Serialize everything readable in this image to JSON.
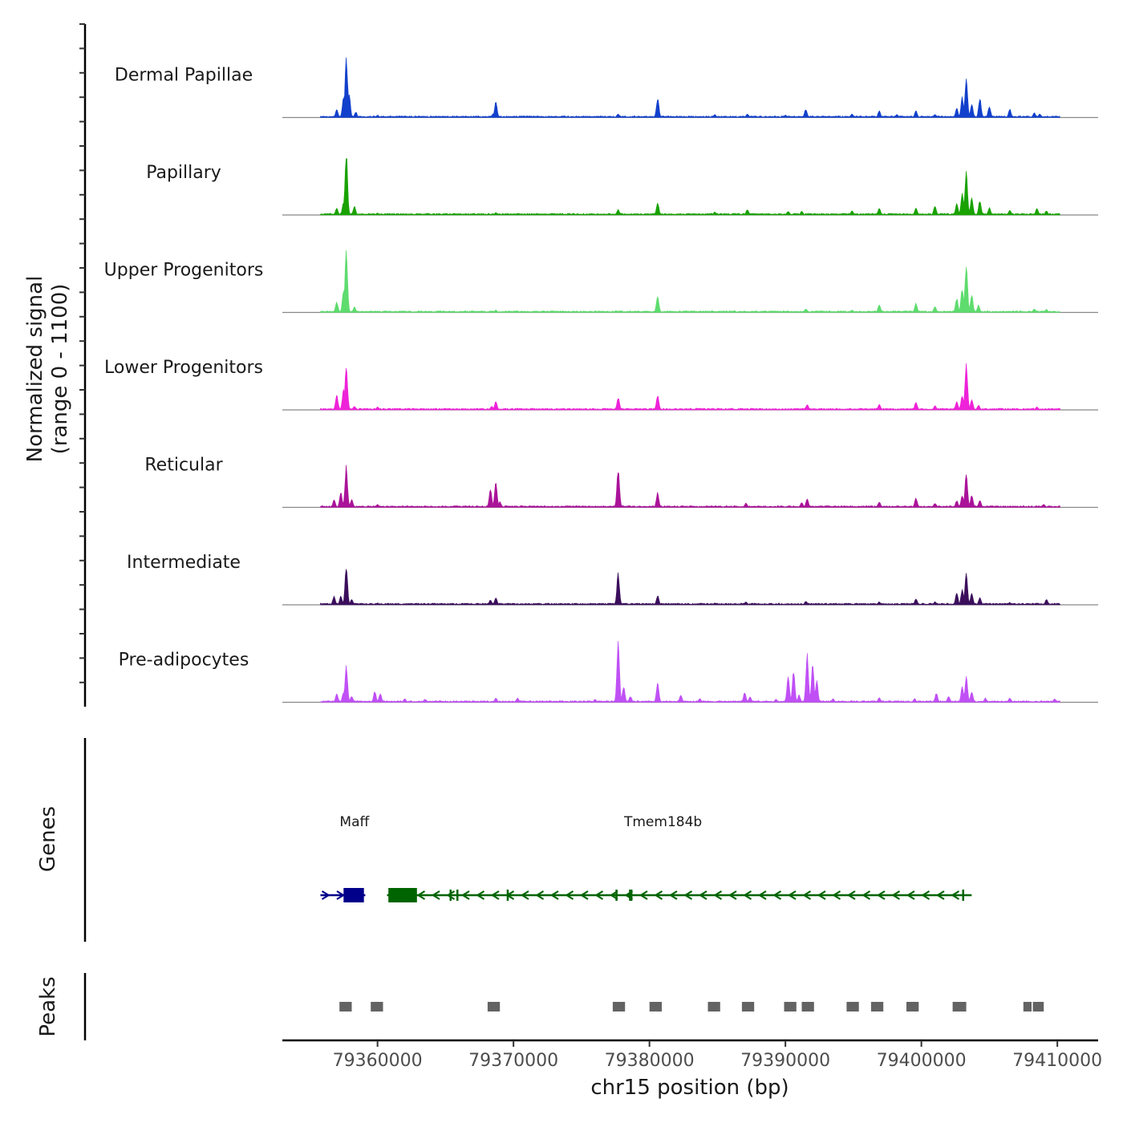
{
  "chart_data": {
    "type": "area",
    "title": "",
    "ylabel_line1": "Normalized signal",
    "ylabel_line2": "(range 0 - 1100)",
    "xlabel": "chr15 position (bp)",
    "xlim": [
      79353000,
      79413000
    ],
    "x_ticks": [
      "79360000",
      "79370000",
      "79380000",
      "79390000",
      "79400000",
      "79410000"
    ],
    "x_tick_values": [
      79360000,
      79370000,
      79380000,
      79390000,
      79400000,
      79410000
    ],
    "ylim": [
      0,
      1100
    ],
    "signal_extent": [
      79355800,
      79410200
    ],
    "tracks": [
      {
        "name": "Dermal Papillae",
        "color": "#1240CC",
        "peaks": [
          [
            79357000,
            0.13
          ],
          [
            79357500,
            0.34
          ],
          [
            79357700,
            1.0
          ],
          [
            79357900,
            0.4
          ],
          [
            79358400,
            0.09
          ],
          [
            79360000,
            0.04
          ],
          [
            79368700,
            0.25
          ],
          [
            79368500,
            0.06
          ],
          [
            79377700,
            0.06
          ],
          [
            79380600,
            0.32
          ],
          [
            79384800,
            0.05
          ],
          [
            79387200,
            0.06
          ],
          [
            79390000,
            0.04
          ],
          [
            79391500,
            0.14
          ],
          [
            79394900,
            0.06
          ],
          [
            79396900,
            0.11
          ],
          [
            79398200,
            0.05
          ],
          [
            79399600,
            0.11
          ],
          [
            79401000,
            0.05
          ],
          [
            79402600,
            0.15
          ],
          [
            79403000,
            0.33
          ],
          [
            79403300,
            0.65
          ],
          [
            79403700,
            0.22
          ],
          [
            79404300,
            0.32
          ],
          [
            79405000,
            0.19
          ],
          [
            79406500,
            0.14
          ],
          [
            79408300,
            0.08
          ],
          [
            79408700,
            0.06
          ]
        ]
      },
      {
        "name": "Papillary",
        "color": "#19A200",
        "peaks": [
          [
            79357000,
            0.11
          ],
          [
            79357500,
            0.22
          ],
          [
            79357700,
            1.0
          ],
          [
            79358300,
            0.14
          ],
          [
            79360000,
            0.03
          ],
          [
            79368700,
            0.04
          ],
          [
            79377700,
            0.09
          ],
          [
            79380600,
            0.2
          ],
          [
            79384800,
            0.05
          ],
          [
            79387200,
            0.09
          ],
          [
            79390200,
            0.06
          ],
          [
            79391200,
            0.06
          ],
          [
            79394900,
            0.07
          ],
          [
            79396900,
            0.11
          ],
          [
            79399600,
            0.12
          ],
          [
            79401000,
            0.15
          ],
          [
            79402600,
            0.18
          ],
          [
            79403000,
            0.35
          ],
          [
            79403300,
            0.7
          ],
          [
            79403700,
            0.3
          ],
          [
            79404300,
            0.24
          ],
          [
            79405000,
            0.12
          ],
          [
            79406500,
            0.08
          ],
          [
            79408500,
            0.11
          ],
          [
            79409200,
            0.07
          ]
        ]
      },
      {
        "name": "Upper Progenitors",
        "color": "#5EDC6E",
        "peaks": [
          [
            79357000,
            0.17
          ],
          [
            79357500,
            0.35
          ],
          [
            79357700,
            1.0
          ],
          [
            79358300,
            0.09
          ],
          [
            79368700,
            0.04
          ],
          [
            79380600,
            0.28
          ],
          [
            79391500,
            0.06
          ],
          [
            79394900,
            0.04
          ],
          [
            79396900,
            0.13
          ],
          [
            79399600,
            0.15
          ],
          [
            79401000,
            0.1
          ],
          [
            79402600,
            0.23
          ],
          [
            79403000,
            0.4
          ],
          [
            79403300,
            0.82
          ],
          [
            79403700,
            0.3
          ],
          [
            79404200,
            0.12
          ],
          [
            79408300,
            0.06
          ],
          [
            79409200,
            0.05
          ]
        ]
      },
      {
        "name": "Lower Progenitors",
        "color": "#EE22D8",
        "peaks": [
          [
            79357000,
            0.24
          ],
          [
            79357500,
            0.34
          ],
          [
            79357700,
            0.69
          ],
          [
            79358300,
            0.06
          ],
          [
            79360000,
            0.05
          ],
          [
            79368700,
            0.14
          ],
          [
            79368400,
            0.06
          ],
          [
            79377700,
            0.2
          ],
          [
            79380600,
            0.24
          ],
          [
            79391600,
            0.09
          ],
          [
            79396900,
            0.09
          ],
          [
            79399600,
            0.13
          ],
          [
            79401000,
            0.07
          ],
          [
            79402600,
            0.13
          ],
          [
            79403000,
            0.24
          ],
          [
            79403300,
            0.78
          ],
          [
            79403700,
            0.18
          ],
          [
            79404200,
            0.08
          ],
          [
            79408500,
            0.05
          ]
        ]
      },
      {
        "name": "Reticular",
        "color": "#AA1399",
        "peaks": [
          [
            79356800,
            0.12
          ],
          [
            79357300,
            0.25
          ],
          [
            79357700,
            0.67
          ],
          [
            79358100,
            0.13
          ],
          [
            79360000,
            0.05
          ],
          [
            79368300,
            0.3
          ],
          [
            79368700,
            0.4
          ],
          [
            79369000,
            0.09
          ],
          [
            79370600,
            0.03
          ],
          [
            79377700,
            0.64
          ],
          [
            79380600,
            0.24
          ],
          [
            79387100,
            0.07
          ],
          [
            79391200,
            0.08
          ],
          [
            79391600,
            0.14
          ],
          [
            79396900,
            0.09
          ],
          [
            79399600,
            0.15
          ],
          [
            79401000,
            0.07
          ],
          [
            79402600,
            0.11
          ],
          [
            79403000,
            0.2
          ],
          [
            79403300,
            0.58
          ],
          [
            79403700,
            0.2
          ],
          [
            79404300,
            0.12
          ],
          [
            79409000,
            0.05
          ]
        ]
      },
      {
        "name": "Intermediate",
        "color": "#3B0E5C",
        "peaks": [
          [
            79356800,
            0.14
          ],
          [
            79357300,
            0.14
          ],
          [
            79357700,
            0.64
          ],
          [
            79358100,
            0.09
          ],
          [
            79360000,
            0.03
          ],
          [
            79368300,
            0.08
          ],
          [
            79368700,
            0.11
          ],
          [
            79377700,
            0.52
          ],
          [
            79380600,
            0.15
          ],
          [
            79384800,
            0.03
          ],
          [
            79387100,
            0.05
          ],
          [
            79391500,
            0.06
          ],
          [
            79396900,
            0.05
          ],
          [
            79399600,
            0.1
          ],
          [
            79401000,
            0.05
          ],
          [
            79402600,
            0.19
          ],
          [
            79403000,
            0.24
          ],
          [
            79403300,
            0.5
          ],
          [
            79403700,
            0.2
          ],
          [
            79404300,
            0.12
          ],
          [
            79406500,
            0.04
          ],
          [
            79409200,
            0.09
          ]
        ]
      },
      {
        "name": "Pre-adipocytes",
        "color": "#C050F5",
        "peaks": [
          [
            79357000,
            0.14
          ],
          [
            79357500,
            0.17
          ],
          [
            79357700,
            0.59
          ],
          [
            79358100,
            0.1
          ],
          [
            79359800,
            0.18
          ],
          [
            79360200,
            0.14
          ],
          [
            79362000,
            0.06
          ],
          [
            79363500,
            0.05
          ],
          [
            79368700,
            0.07
          ],
          [
            79370300,
            0.07
          ],
          [
            79376000,
            0.05
          ],
          [
            79377700,
            1.0
          ],
          [
            79378100,
            0.26
          ],
          [
            79378600,
            0.1
          ],
          [
            79380600,
            0.33
          ],
          [
            79382300,
            0.12
          ],
          [
            79383700,
            0.06
          ],
          [
            79387000,
            0.16
          ],
          [
            79387400,
            0.09
          ],
          [
            79389300,
            0.05
          ],
          [
            79390200,
            0.44
          ],
          [
            79390600,
            0.52
          ],
          [
            79391000,
            0.12
          ],
          [
            79391600,
            0.79
          ],
          [
            79392000,
            0.6
          ],
          [
            79392300,
            0.35
          ],
          [
            79393500,
            0.06
          ],
          [
            79396900,
            0.08
          ],
          [
            79399500,
            0.06
          ],
          [
            79401100,
            0.15
          ],
          [
            79402000,
            0.1
          ],
          [
            79403000,
            0.25
          ],
          [
            79403300,
            0.43
          ],
          [
            79403700,
            0.18
          ],
          [
            79404700,
            0.07
          ],
          [
            79406500,
            0.07
          ],
          [
            79409800,
            0.06
          ]
        ]
      }
    ],
    "genes_label": "Genes",
    "genes": [
      {
        "name": "Maff",
        "strand": "+",
        "color": "#00008B",
        "start": 79355800,
        "end": 79359100,
        "exons": [
          [
            79357500,
            79359000
          ]
        ],
        "label_pos": 79358300
      },
      {
        "name": "Tmem184b",
        "strand": "-",
        "color": "#006400",
        "start": 79360700,
        "end": 79403700,
        "exons": [
          [
            79360800,
            79362900
          ],
          [
            79365300,
            79365450
          ],
          [
            79365800,
            79365950
          ],
          [
            79369500,
            79369650
          ],
          [
            79377500,
            79377650
          ],
          [
            79378500,
            79378750
          ],
          [
            79403000,
            79403100
          ]
        ],
        "label_pos": 79381000
      }
    ],
    "peaks_label": "Peaks",
    "peak_regions": [
      [
        79357200,
        79358100
      ],
      [
        79359500,
        79360400
      ],
      [
        79368100,
        79369000
      ],
      [
        79377300,
        79378200
      ],
      [
        79380000,
        79380900
      ],
      [
        79384300,
        79385200
      ],
      [
        79386800,
        79387700
      ],
      [
        79389900,
        79390800
      ],
      [
        79391200,
        79392100
      ],
      [
        79394500,
        79395400
      ],
      [
        79396300,
        79397200
      ],
      [
        79398900,
        79399800
      ],
      [
        79402300,
        79403300
      ],
      [
        79407500,
        79408100
      ],
      [
        79408200,
        79409000
      ]
    ]
  }
}
